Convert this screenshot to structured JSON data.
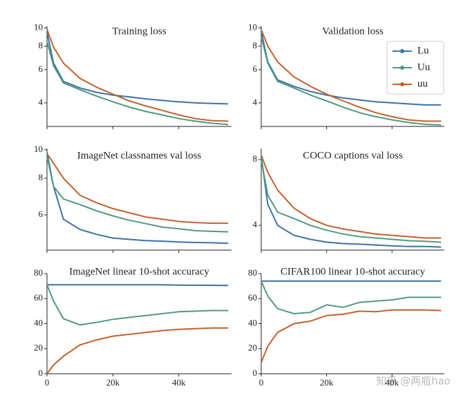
{
  "chart_data": [
    {
      "type": "line",
      "title": "Training loss",
      "yscale": "log",
      "x": [
        0,
        2000,
        5000,
        10000,
        15000,
        20000,
        25000,
        30000,
        35000,
        40000,
        45000,
        50000,
        55000
      ],
      "series": [
        {
          "name": "Lu",
          "color": "#3b72a8",
          "values": [
            9.5,
            6.5,
            5.2,
            4.8,
            4.55,
            4.4,
            4.3,
            4.2,
            4.12,
            4.05,
            4.0,
            3.97,
            3.95
          ]
        },
        {
          "name": "Uu",
          "color": "#4f9a7c",
          "values": [
            8.5,
            6.3,
            5.1,
            4.7,
            4.35,
            4.05,
            3.8,
            3.6,
            3.45,
            3.3,
            3.2,
            3.12,
            3.07
          ]
        },
        {
          "name": "uu",
          "color": "#c1612c",
          "values": [
            9.8,
            7.9,
            6.5,
            5.4,
            4.85,
            4.45,
            4.1,
            3.85,
            3.65,
            3.45,
            3.3,
            3.22,
            3.2
          ]
        }
      ],
      "xlim": [
        0,
        56000
      ],
      "ylim": [
        3.0,
        10.2
      ],
      "xticks": [
        0,
        20000,
        40000
      ],
      "yticks": [
        4,
        6,
        8,
        10
      ]
    },
    {
      "type": "line",
      "title": "Validation loss",
      "yscale": "log",
      "legend": "upper right",
      "x": [
        0,
        2000,
        5000,
        10000,
        15000,
        20000,
        25000,
        30000,
        35000,
        40000,
        45000,
        50000,
        55000
      ],
      "series": [
        {
          "name": "Lu",
          "color": "#3b72a8",
          "values": [
            9.6,
            6.6,
            5.3,
            4.9,
            4.6,
            4.4,
            4.25,
            4.15,
            4.05,
            4.0,
            3.95,
            3.9,
            3.9
          ]
        },
        {
          "name": "Uu",
          "color": "#4f9a7c",
          "values": [
            9.0,
            6.5,
            5.2,
            4.8,
            4.4,
            4.1,
            3.8,
            3.55,
            3.38,
            3.25,
            3.15,
            3.08,
            3.05
          ]
        },
        {
          "name": "uu",
          "color": "#c1612c",
          "values": [
            9.8,
            8.0,
            6.6,
            5.5,
            4.9,
            4.45,
            4.1,
            3.8,
            3.55,
            3.38,
            3.25,
            3.2,
            3.2
          ]
        }
      ],
      "xlim": [
        0,
        56000
      ],
      "ylim": [
        3.0,
        10.2
      ],
      "xticks": [
        0,
        20000,
        40000
      ],
      "yticks": [
        4,
        6,
        8,
        10
      ]
    },
    {
      "type": "line",
      "title": "ImageNet classnames val loss",
      "yscale": "log",
      "x": [
        0,
        2000,
        5000,
        10000,
        15000,
        20000,
        25000,
        30000,
        35000,
        40000,
        45000,
        50000,
        55000
      ],
      "series": [
        {
          "name": "Lu",
          "color": "#3b72a8",
          "values": [
            9.8,
            7.5,
            5.8,
            5.35,
            5.15,
            5.0,
            4.95,
            4.9,
            4.88,
            4.85,
            4.83,
            4.82,
            4.8
          ]
        },
        {
          "name": "Uu",
          "color": "#4f9a7c",
          "values": [
            9.5,
            7.5,
            6.8,
            6.5,
            6.2,
            5.95,
            5.75,
            5.6,
            5.45,
            5.38,
            5.3,
            5.27,
            5.25
          ]
        },
        {
          "name": "uu",
          "color": "#c1612c",
          "values": [
            9.7,
            9.0,
            8.0,
            7.0,
            6.6,
            6.3,
            6.1,
            5.9,
            5.8,
            5.7,
            5.65,
            5.62,
            5.62
          ]
        }
      ],
      "xlim": [
        0,
        56000
      ],
      "ylim": [
        4.55,
        10.1
      ],
      "xticks": [
        0,
        20000,
        40000
      ],
      "yticks": [
        6,
        8,
        10
      ]
    },
    {
      "type": "line",
      "title": "COCO captions val loss",
      "yscale": "log",
      "x": [
        0,
        2000,
        5000,
        10000,
        15000,
        20000,
        25000,
        30000,
        35000,
        40000,
        45000,
        50000,
        55000
      ],
      "series": [
        {
          "name": "Lu",
          "color": "#3b72a8",
          "values": [
            8.3,
            5.0,
            4.0,
            3.6,
            3.45,
            3.35,
            3.3,
            3.28,
            3.25,
            3.22,
            3.2,
            3.2,
            3.18
          ]
        },
        {
          "name": "Uu",
          "color": "#4f9a7c",
          "values": [
            8.0,
            5.5,
            4.6,
            4.3,
            4.0,
            3.8,
            3.65,
            3.55,
            3.5,
            3.45,
            3.4,
            3.38,
            3.35
          ]
        },
        {
          "name": "uu",
          "color": "#c1612c",
          "values": [
            8.4,
            7.0,
            5.8,
            4.8,
            4.3,
            4.0,
            3.85,
            3.75,
            3.65,
            3.6,
            3.55,
            3.5,
            3.5
          ]
        }
      ],
      "xlim": [
        0,
        56000
      ],
      "ylim": [
        3.08,
        9
      ],
      "xticks": [
        0,
        20000,
        40000
      ],
      "yticks": [
        4,
        8
      ]
    },
    {
      "type": "line",
      "title": "ImageNet linear 10-shot accuracy",
      "x": [
        0,
        2000,
        5000,
        10000,
        15000,
        20000,
        25000,
        30000,
        35000,
        40000,
        45000,
        50000,
        55000
      ],
      "series": [
        {
          "name": "Lu",
          "color": "#3b72a8",
          "values": [
            71,
            71,
            71,
            71,
            71,
            71,
            71,
            71,
            71,
            70.8,
            70.7,
            70.6,
            70.5
          ]
        },
        {
          "name": "Uu",
          "color": "#4f9a7c",
          "values": [
            71,
            58,
            44,
            39,
            41,
            43.5,
            45,
            46.5,
            48,
            49.5,
            50,
            50.5,
            50.5
          ]
        },
        {
          "name": "uu",
          "color": "#c1612c",
          "values": [
            0,
            7,
            14,
            23,
            27,
            30,
            31.5,
            33,
            34.5,
            35.5,
            36,
            36.5,
            36.5
          ]
        }
      ],
      "xlim": [
        0,
        56000
      ],
      "ylim": [
        0,
        80
      ],
      "xticks": [
        0,
        {
          "value": 20000,
          "label": "20k"
        },
        {
          "value": 40000,
          "label": "40k"
        }
      ],
      "yticks": [
        0,
        20,
        40,
        60,
        80
      ]
    },
    {
      "type": "line",
      "title": "CIFAR100 linear 10-shot accuracy",
      "x": [
        0,
        2000,
        5000,
        10000,
        15000,
        20000,
        25000,
        30000,
        35000,
        40000,
        45000,
        50000,
        55000
      ],
      "series": [
        {
          "name": "Lu",
          "color": "#3b72a8",
          "values": [
            74,
            74,
            74,
            74,
            74,
            74,
            74,
            74,
            74,
            74,
            74,
            74,
            74
          ]
        },
        {
          "name": "Uu",
          "color": "#4f9a7c",
          "values": [
            74,
            62,
            52,
            48,
            49,
            55,
            53,
            57,
            58,
            59,
            61,
            61,
            61
          ]
        },
        {
          "name": "uu",
          "color": "#c1612c",
          "values": [
            9,
            22,
            33,
            40,
            42,
            46.5,
            47.5,
            50,
            49.5,
            51,
            51,
            51,
            50.5
          ]
        }
      ],
      "xlim": [
        0,
        56000
      ],
      "ylim": [
        0,
        80
      ],
      "xticks": [
        0,
        {
          "value": 20000,
          "label": "20k"
        },
        {
          "value": 40000,
          "label": "40k"
        }
      ],
      "yticks": [
        0,
        20,
        40,
        60,
        80
      ]
    }
  ],
  "watermark": "知乎 @两瓶hao"
}
